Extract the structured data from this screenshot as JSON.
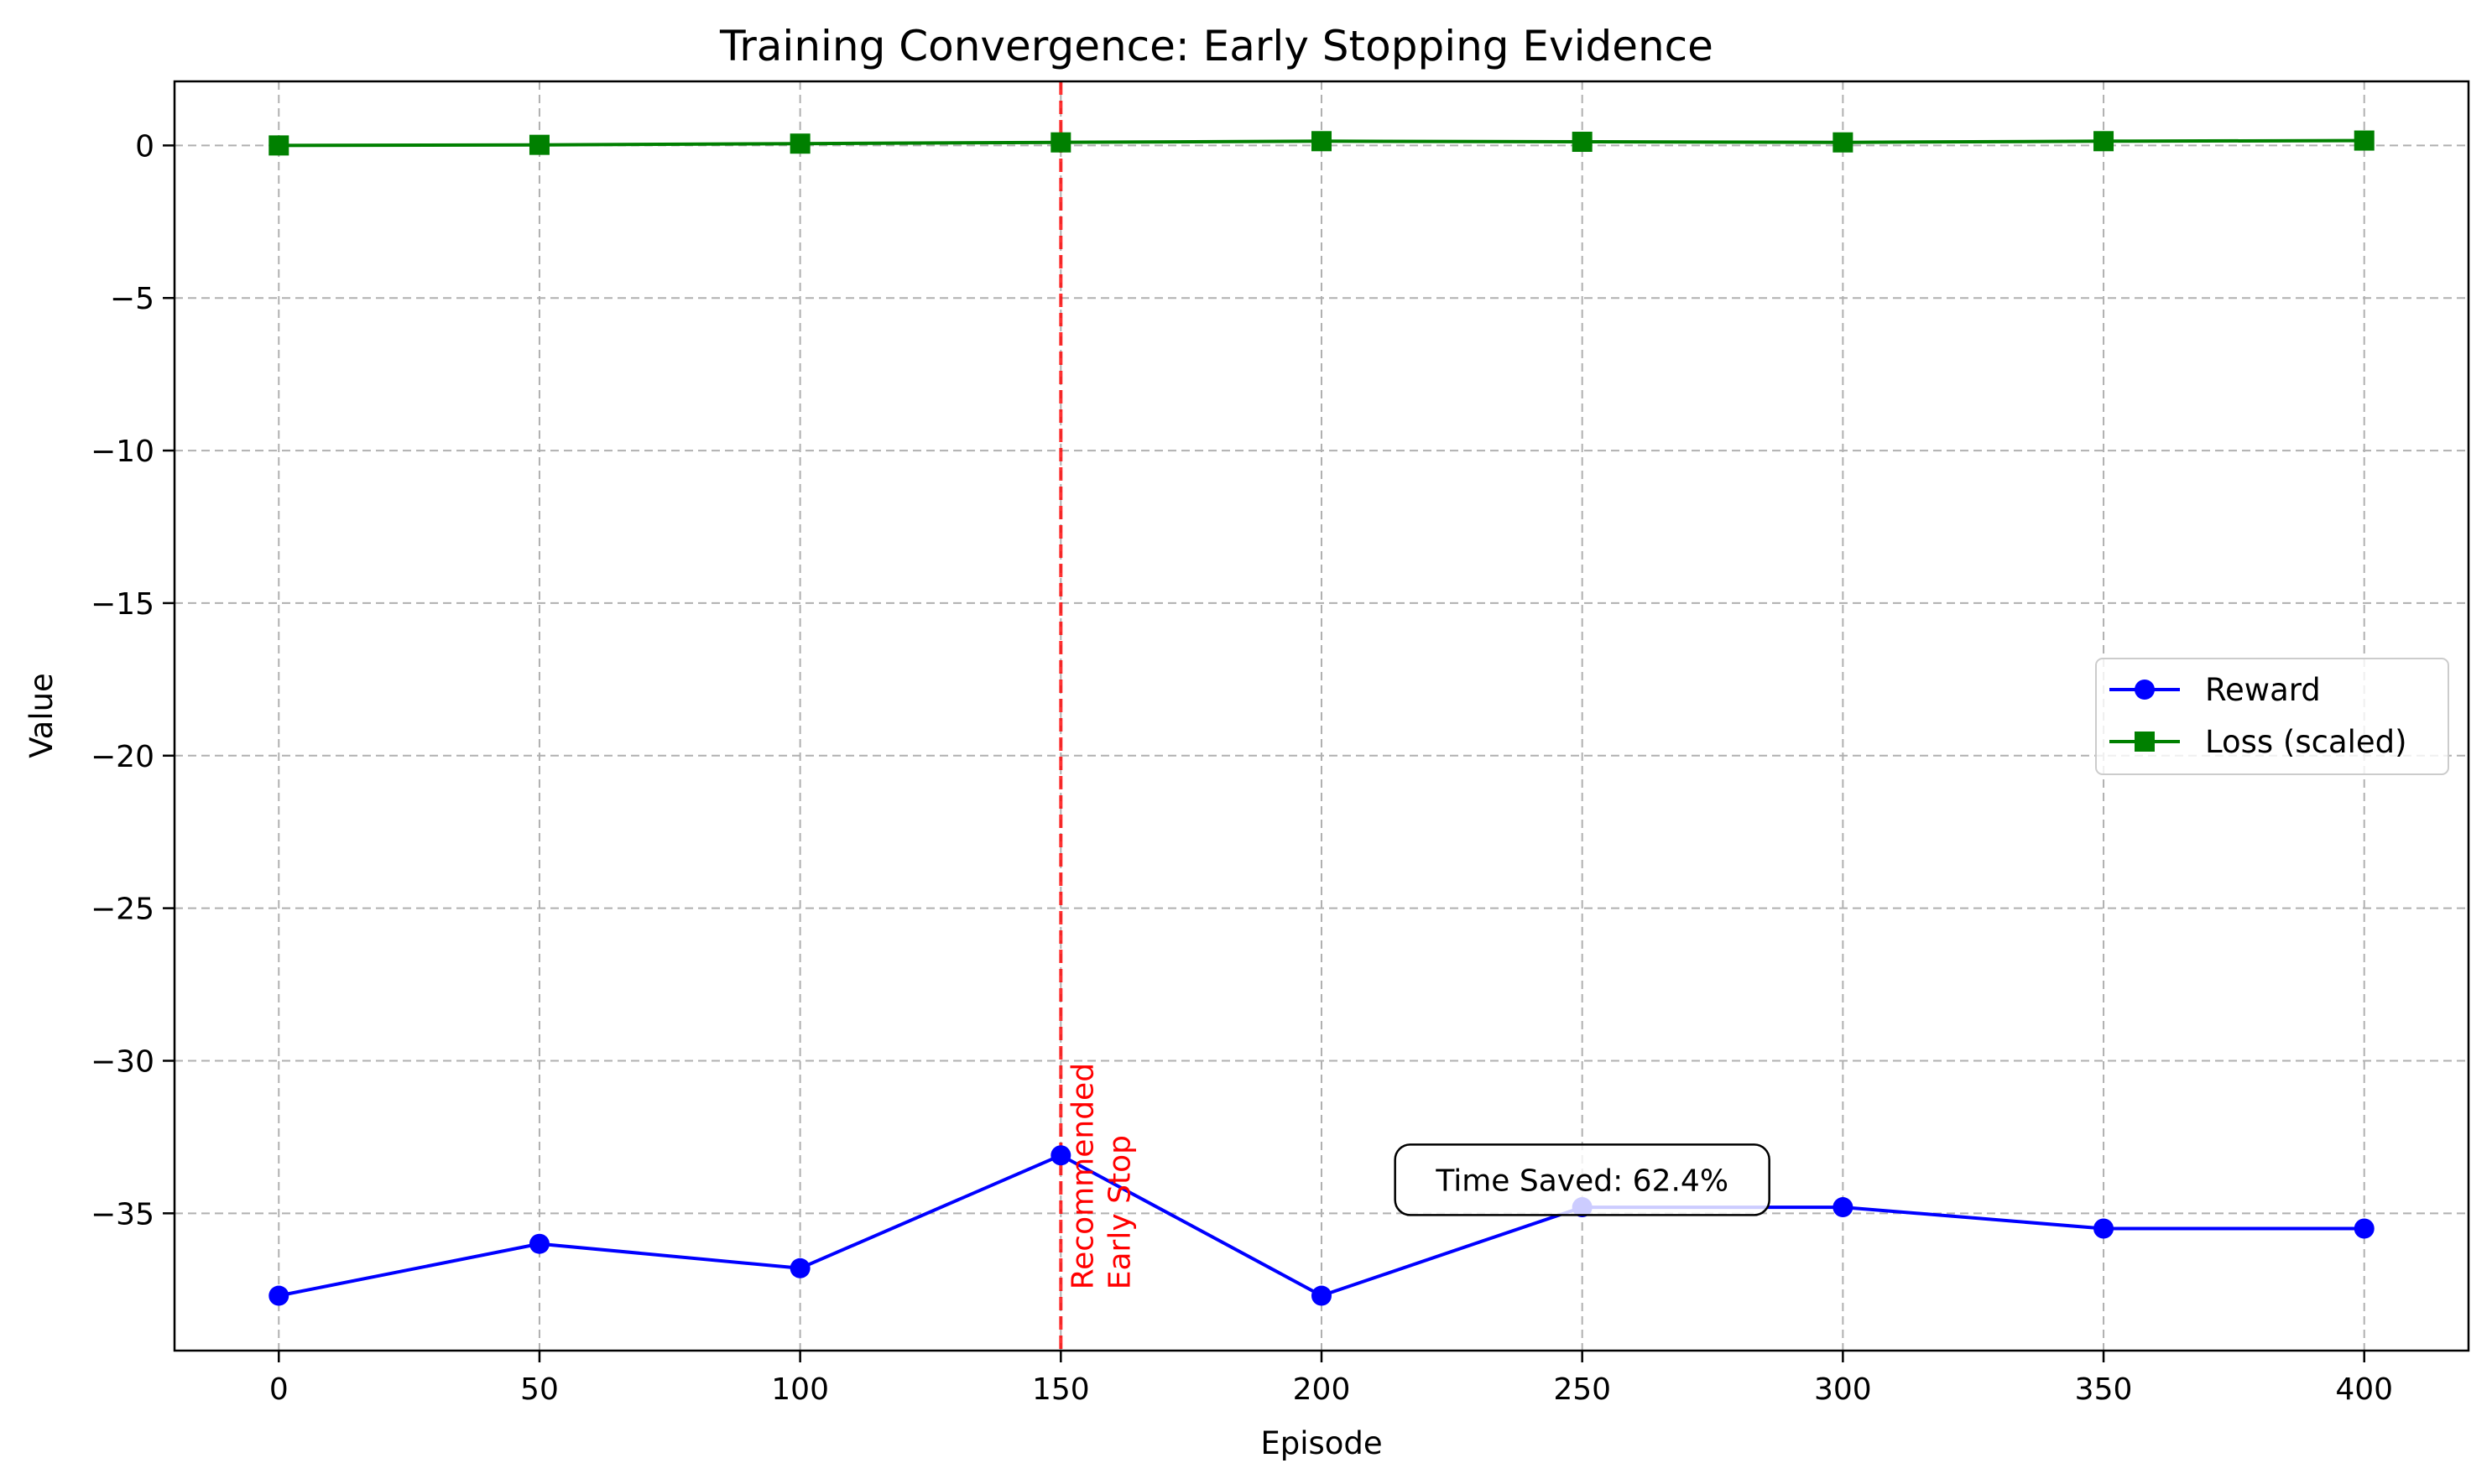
{
  "chart_data": {
    "type": "line",
    "title": "Training Convergence: Early Stopping Evidence",
    "xlabel": "Episode",
    "ylabel": "Value",
    "xlim": [
      -20,
      420
    ],
    "ylim": [
      -39.5,
      2.1
    ],
    "xticks": [
      0,
      50,
      100,
      150,
      200,
      250,
      300,
      350,
      400
    ],
    "yticks": [
      0,
      -5,
      -10,
      -15,
      -20,
      -25,
      -30,
      -35
    ],
    "grid": true,
    "legend_position": "center-right",
    "x": [
      0,
      50,
      100,
      150,
      200,
      250,
      300,
      350,
      400
    ],
    "series": [
      {
        "name": "Reward",
        "color": "#0000ff",
        "marker": "circle",
        "values": [
          -37.7,
          -36.0,
          -36.8,
          -33.1,
          -37.7,
          -34.8,
          -34.8,
          -35.5,
          -35.5
        ]
      },
      {
        "name": "Loss (scaled)",
        "color": "#008000",
        "marker": "square",
        "values": [
          0.0,
          0.02,
          0.06,
          0.1,
          0.14,
          0.12,
          0.1,
          0.14,
          0.16
        ]
      }
    ],
    "vline": {
      "x": 150,
      "color": "#ff0000",
      "label_lines": [
        "Recommended",
        "Early Stop"
      ]
    },
    "annotation_box": {
      "x": 250,
      "y": -33.9,
      "text": "Time Saved: 62.4%"
    }
  }
}
